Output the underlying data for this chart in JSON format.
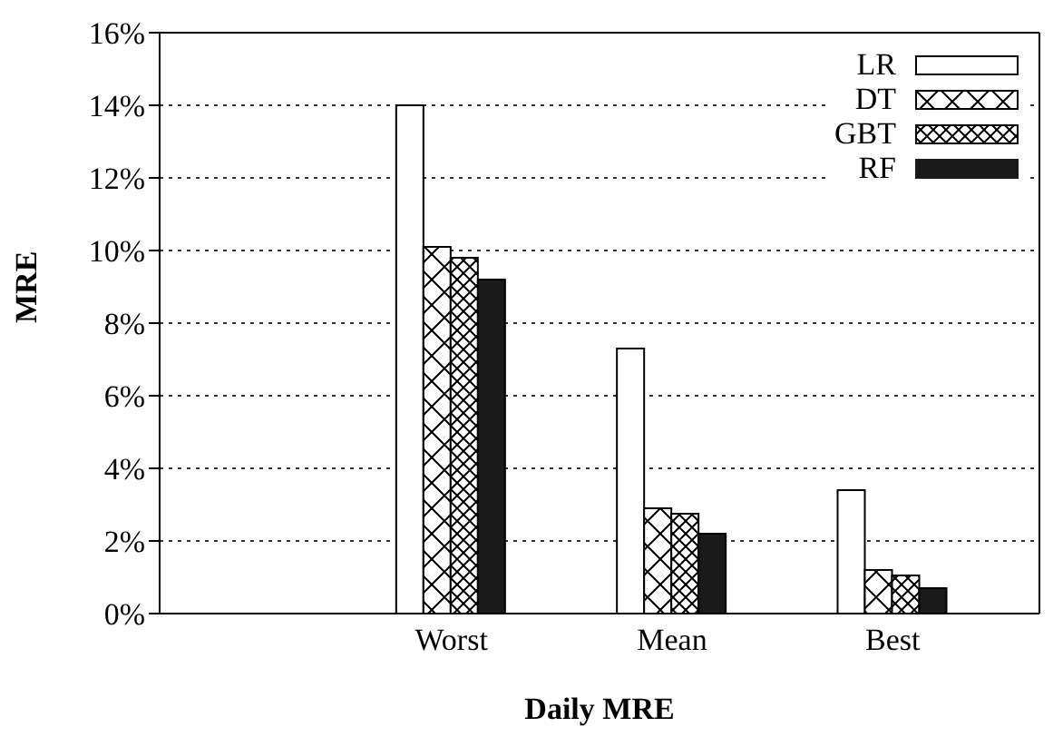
{
  "chart_data": {
    "type": "bar",
    "xlabel": "Daily MRE",
    "ylabel": "MRE",
    "categories": [
      "Worst",
      "Mean",
      "Best"
    ],
    "series": [
      {
        "name": "LR",
        "color": "#ffffff",
        "values": [
          14,
          7.3,
          3.4
        ]
      },
      {
        "name": "DT",
        "color": "#000000",
        "values": [
          10.1,
          2.9,
          1.2
        ]
      },
      {
        "name": "GBT",
        "color": "#000000",
        "values": [
          9.8,
          2.75,
          1.05
        ]
      },
      {
        "name": "RF",
        "color": "#1a1a1a",
        "values": [
          9.2,
          2.2,
          0.7
        ]
      }
    ],
    "ylim": [
      0,
      16
    ],
    "yticks": [
      {
        "value": 0,
        "label": "0%"
      },
      {
        "value": 2,
        "label": "2%"
      },
      {
        "value": 4,
        "label": "4%"
      },
      {
        "value": 6,
        "label": "6%"
      },
      {
        "value": 8,
        "label": "8%"
      },
      {
        "value": 10,
        "label": "10%"
      },
      {
        "value": 12,
        "label": "12%"
      },
      {
        "value": 14,
        "label": "14%"
      },
      {
        "value": 16,
        "label": "16%"
      }
    ],
    "grid": "y",
    "legend": "top right"
  }
}
